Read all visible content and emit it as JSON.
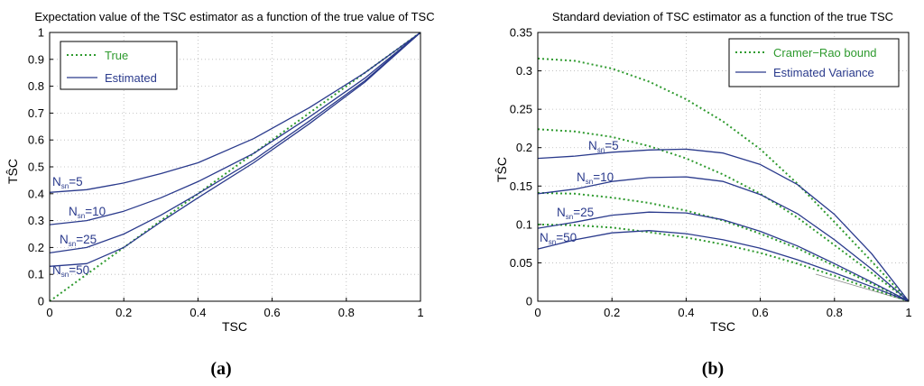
{
  "colors": {
    "true_line": "#2e9a2e",
    "estimated_line": "#2a3a8c",
    "grid": "#b8b8b8",
    "thin_line": "#8a8a8a"
  },
  "chart_data": [
    {
      "id": "a",
      "type": "line",
      "panel_label": "(a)",
      "title": "Expectation value of the TSC estimator as a function of the true value of TSC",
      "xlabel": "TSC",
      "ylabel": "TŜC",
      "xlim": [
        0,
        1
      ],
      "ylim": [
        0,
        1
      ],
      "xticks": [
        0,
        0.2,
        0.4,
        0.6,
        0.8,
        1
      ],
      "yticks": [
        0,
        0.1,
        0.2,
        0.3,
        0.4,
        0.5,
        0.6,
        0.7,
        0.8,
        0.9,
        1
      ],
      "xtick_labels": [
        "0",
        "0.2",
        "0.4",
        "0.6",
        "0.8",
        "1"
      ],
      "ytick_labels": [
        "0",
        "0.1",
        "0.2",
        "0.3",
        "0.4",
        "0.5",
        "0.6",
        "0.7",
        "0.8",
        "0.9",
        "1"
      ],
      "grid": true,
      "legend": {
        "position": "top-left",
        "entries": [
          "True",
          "Estimated"
        ]
      },
      "series": [
        {
          "name": "True",
          "style": "dotted",
          "color": "green",
          "x": [
            0,
            1
          ],
          "y": [
            0,
            1
          ]
        },
        {
          "name": "Estimated",
          "label_main": "N",
          "label_sub": "sn",
          "label_rest": "=5",
          "style": "solid",
          "color": "blue",
          "x": [
            0,
            0.1,
            0.2,
            0.3,
            0.4,
            0.55,
            0.7,
            0.85,
            1
          ],
          "y": [
            0.405,
            0.415,
            0.44,
            0.475,
            0.515,
            0.605,
            0.72,
            0.85,
            1
          ]
        },
        {
          "name": "Estimated",
          "label_main": "N",
          "label_sub": "sn",
          "label_rest": "=10",
          "style": "solid",
          "color": "blue",
          "x": [
            0,
            0.1,
            0.2,
            0.3,
            0.4,
            0.55,
            0.7,
            0.85,
            1
          ],
          "y": [
            0.285,
            0.3,
            0.335,
            0.385,
            0.445,
            0.55,
            0.685,
            0.83,
            1
          ]
        },
        {
          "name": "Estimated",
          "label_main": "N",
          "label_sub": "sn",
          "label_rest": "=25",
          "style": "solid",
          "color": "blue",
          "x": [
            0,
            0.1,
            0.2,
            0.3,
            0.4,
            0.55,
            0.7,
            0.85,
            1
          ],
          "y": [
            0.18,
            0.2,
            0.25,
            0.32,
            0.4,
            0.525,
            0.67,
            0.82,
            1
          ]
        },
        {
          "name": "Estimated",
          "label_main": "N",
          "label_sub": "sn",
          "label_rest": "=50",
          "style": "solid",
          "color": "blue",
          "x": [
            0,
            0.1,
            0.2,
            0.3,
            0.4,
            0.55,
            0.7,
            0.85,
            1
          ],
          "y": [
            0.13,
            0.14,
            0.2,
            0.295,
            0.385,
            0.515,
            0.66,
            0.815,
            1
          ]
        }
      ]
    },
    {
      "id": "b",
      "type": "line",
      "panel_label": "(b)",
      "title": "Standard deviation of TSC estimator as a function of the true TSC",
      "xlabel": "TSC",
      "ylabel": "TŜC",
      "xlim": [
        0,
        1
      ],
      "ylim": [
        0,
        0.35
      ],
      "xticks": [
        0,
        0.2,
        0.4,
        0.6,
        0.8,
        1
      ],
      "yticks": [
        0,
        0.05,
        0.1,
        0.15,
        0.2,
        0.25,
        0.3,
        0.35
      ],
      "xtick_labels": [
        "0",
        "0.2",
        "0.4",
        "0.6",
        "0.8",
        "1"
      ],
      "ytick_labels": [
        "0",
        "0.05",
        "0.1",
        "0.15",
        "0.2",
        "0.25",
        "0.3",
        "0.35"
      ],
      "grid": true,
      "legend": {
        "position": "top-right",
        "entries": [
          "Cramer−Rao bound",
          "Estimated Variance"
        ]
      },
      "series": [
        {
          "name": "Cramer−Rao bound",
          "style": "dotted",
          "color": "green",
          "x": [
            0,
            0.1,
            0.2,
            0.3,
            0.4,
            0.5,
            0.6,
            0.7,
            0.8,
            0.9,
            1
          ],
          "y": [
            0.316,
            0.313,
            0.303,
            0.286,
            0.263,
            0.234,
            0.198,
            0.153,
            0.103,
            0.052,
            0
          ]
        },
        {
          "name": "Cramer−Rao bound",
          "style": "dotted",
          "color": "green",
          "x": [
            0,
            0.1,
            0.2,
            0.3,
            0.4,
            0.5,
            0.6,
            0.7,
            0.8,
            0.9,
            1
          ],
          "y": [
            0.224,
            0.221,
            0.214,
            0.202,
            0.186,
            0.165,
            0.14,
            0.109,
            0.073,
            0.037,
            0
          ]
        },
        {
          "name": "Cramer−Rao bound",
          "style": "dotted",
          "color": "green",
          "x": [
            0,
            0.1,
            0.2,
            0.3,
            0.4,
            0.5,
            0.6,
            0.7,
            0.8,
            0.9,
            1
          ],
          "y": [
            0.141,
            0.14,
            0.135,
            0.128,
            0.118,
            0.105,
            0.088,
            0.069,
            0.046,
            0.023,
            0
          ]
        },
        {
          "name": "Cramer−Rao bound",
          "style": "dotted",
          "color": "green",
          "x": [
            0,
            0.1,
            0.2,
            0.3,
            0.4,
            0.5,
            0.6,
            0.7,
            0.8,
            0.9,
            1
          ],
          "y": [
            0.1,
            0.099,
            0.096,
            0.09,
            0.083,
            0.074,
            0.063,
            0.049,
            0.033,
            0.016,
            0
          ]
        },
        {
          "name": "Estimated Variance",
          "label_main": "N",
          "label_sub": "sn",
          "label_rest": "=5",
          "style": "solid",
          "color": "blue",
          "x": [
            0,
            0.1,
            0.2,
            0.3,
            0.4,
            0.5,
            0.6,
            0.7,
            0.8,
            0.9,
            1
          ],
          "y": [
            0.186,
            0.189,
            0.194,
            0.197,
            0.198,
            0.193,
            0.178,
            0.152,
            0.113,
            0.062,
            0
          ]
        },
        {
          "name": "Estimated Variance",
          "label_main": "N",
          "label_sub": "sn",
          "label_rest": "=10",
          "style": "solid",
          "color": "blue",
          "x": [
            0,
            0.1,
            0.2,
            0.3,
            0.4,
            0.5,
            0.6,
            0.7,
            0.8,
            0.9,
            1
          ],
          "y": [
            0.14,
            0.146,
            0.156,
            0.161,
            0.162,
            0.156,
            0.139,
            0.114,
            0.08,
            0.042,
            0
          ]
        },
        {
          "name": "Estimated Variance",
          "label_main": "N",
          "label_sub": "sn",
          "label_rest": "=25",
          "style": "solid",
          "color": "blue",
          "x": [
            0,
            0.1,
            0.2,
            0.3,
            0.4,
            0.5,
            0.6,
            0.7,
            0.8,
            0.9,
            1
          ],
          "y": [
            0.095,
            0.103,
            0.112,
            0.116,
            0.115,
            0.106,
            0.091,
            0.072,
            0.049,
            0.025,
            0
          ]
        },
        {
          "name": "Estimated Variance",
          "label_main": "N",
          "label_sub": "sn",
          "label_rest": "=50",
          "style": "solid",
          "color": "blue",
          "x": [
            0,
            0.1,
            0.2,
            0.3,
            0.4,
            0.5,
            0.6,
            0.7,
            0.8,
            0.9,
            1
          ],
          "y": [
            0.068,
            0.08,
            0.089,
            0.092,
            0.088,
            0.08,
            0.069,
            0.054,
            0.037,
            0.019,
            0
          ]
        }
      ]
    }
  ]
}
